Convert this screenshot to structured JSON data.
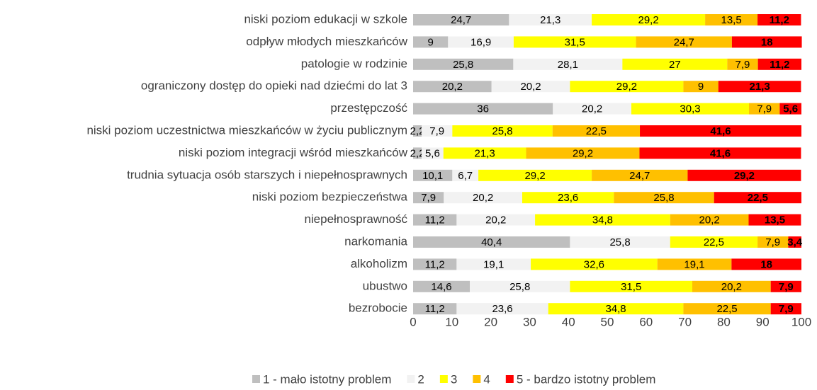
{
  "chart_data": {
    "type": "stacked-bar-horizontal",
    "categories": [
      "niski poziom edukacji w szkole",
      "odpływ młodych mieszkańców",
      "patologie w rodzinie",
      "ograniczony dostęp do opieki nad dziećmi do lat 3",
      "przestępczość",
      "niski poziom uczestnictwa mieszkańców w życiu publicznym",
      "niski poziom integracji wśród mieszkańców",
      "trudnia sytuacja osób starszych i niepełnosprawnych",
      "niski poziom bezpieczeństwa",
      "niepełnosprawność",
      "narkomania",
      "alkoholizm",
      "ubustwo",
      "bezrobocie"
    ],
    "series": [
      {
        "name": "1 - mało istotny problem",
        "color": "#bfbfbf",
        "values": [
          24.7,
          9,
          25.8,
          20.2,
          36,
          2.2,
          2.2,
          10.1,
          7.9,
          11.2,
          40.4,
          11.2,
          14.6,
          11.2
        ],
        "value_labels": [
          "24,7",
          "9",
          "25,8",
          "20,2",
          "36",
          "2,2",
          "2,2",
          "10,1",
          "7,9",
          "11,2",
          "40,4",
          "11,2",
          "14,6",
          "11,2"
        ]
      },
      {
        "name": "2",
        "color": "#f2f2f2",
        "values": [
          21.3,
          16.9,
          28.1,
          20.2,
          20.2,
          7.9,
          5.6,
          6.7,
          20.2,
          20.2,
          25.8,
          19.1,
          25.8,
          23.6
        ],
        "value_labels": [
          "21,3",
          "16,9",
          "28,1",
          "20,2",
          "20,2",
          "7,9",
          "5,6",
          "6,7",
          "20,2",
          "20,2",
          "25,8",
          "19,1",
          "25,8",
          "23,6"
        ]
      },
      {
        "name": "3",
        "color": "#ffff00",
        "values": [
          29.2,
          31.5,
          27,
          29.2,
          30.3,
          25.8,
          21.3,
          29.2,
          23.6,
          34.8,
          22.5,
          32.6,
          31.5,
          34.8
        ],
        "value_labels": [
          "29,2",
          "31,5",
          "27",
          "29,2",
          "30,3",
          "25,8",
          "21,3",
          "29,2",
          "23,6",
          "34,8",
          "22,5",
          "32,6",
          "31,5",
          "34,8"
        ]
      },
      {
        "name": "4",
        "color": "#ffc000",
        "values": [
          13.5,
          24.7,
          7.9,
          9,
          7.9,
          22.5,
          29.2,
          24.7,
          25.8,
          20.2,
          7.9,
          19.1,
          20.2,
          22.5
        ],
        "value_labels": [
          "13,5",
          "24,7",
          "7,9",
          "9",
          "7,9",
          "22,5",
          "29,2",
          "24,7",
          "25,8",
          "20,2",
          "7,9",
          "19,1",
          "20,2",
          "22,5"
        ]
      },
      {
        "name": "5 - bardzo istotny problem",
        "color": "#ff0000",
        "values": [
          11.2,
          18,
          11.2,
          21.3,
          5.6,
          41.6,
          41.6,
          29.2,
          22.5,
          13.5,
          3.4,
          18,
          7.9,
          7.9
        ],
        "value_labels": [
          "11,2",
          "18",
          "11,2",
          "21,3",
          "5,6",
          "41,6",
          "41,6",
          "29,2",
          "22,5",
          "13,5",
          "3,4",
          "18",
          "7,9",
          "7,9"
        ]
      }
    ],
    "xlim": [
      0,
      100
    ],
    "xticks": [
      0,
      10,
      20,
      30,
      40,
      50,
      60,
      70,
      80,
      90,
      100
    ],
    "grid": false,
    "legend": "bottom"
  }
}
